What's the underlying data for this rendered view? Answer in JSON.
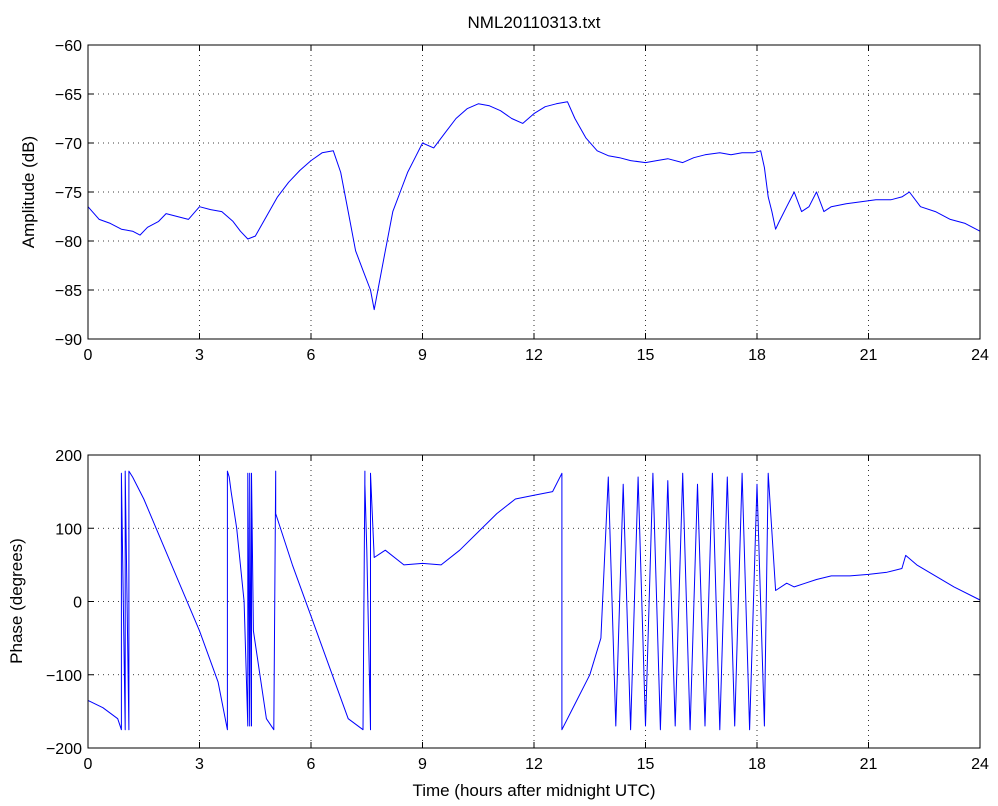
{
  "chart_data": [
    {
      "type": "line",
      "title": "NML20110313.txt",
      "xlabel": "",
      "ylabel": "Amplitude (dB)",
      "xlim": [
        0,
        24
      ],
      "ylim": [
        -90,
        -60
      ],
      "xticks": [
        "0",
        "3",
        "6",
        "9",
        "12",
        "15",
        "18",
        "21",
        "24"
      ],
      "yticks": [
        "−90",
        "−85",
        "−80",
        "−75",
        "−70",
        "−65",
        "−60"
      ],
      "grid": true,
      "line_color": "#0000ff",
      "series": [
        {
          "x": [
            0,
            0.3,
            0.6,
            0.9,
            1.2,
            1.4,
            1.6,
            1.9,
            2.1,
            2.4,
            2.7,
            3.0,
            3.3,
            3.6,
            3.9,
            4.1,
            4.3,
            4.5,
            4.8,
            5.1,
            5.4,
            5.7,
            6.0,
            6.3,
            6.6,
            6.8,
            7.0,
            7.2,
            7.4,
            7.6,
            7.7,
            7.8,
            8.0,
            8.2,
            8.4,
            8.6,
            8.8,
            9.0,
            9.3,
            9.6,
            9.9,
            10.2,
            10.5,
            10.8,
            11.1,
            11.4,
            11.7,
            12.0,
            12.3,
            12.6,
            12.9,
            13.1,
            13.4,
            13.7,
            14.0,
            14.3,
            14.6,
            15.0,
            15.3,
            15.6,
            16.0,
            16.3,
            16.6,
            17.0,
            17.3,
            17.6,
            17.9,
            18.1,
            18.2,
            18.3,
            18.4,
            18.5,
            18.6,
            18.8,
            19.0,
            19.2,
            19.4,
            19.6,
            19.8,
            20.0,
            20.4,
            20.8,
            21.2,
            21.6,
            21.9,
            22.1,
            22.4,
            22.8,
            23.2,
            23.6,
            24.0
          ],
          "values": [
            -76.5,
            -77.8,
            -78.2,
            -78.8,
            -79.0,
            -79.4,
            -78.6,
            -78.0,
            -77.2,
            -77.5,
            -77.8,
            -76.5,
            -76.8,
            -77.0,
            -78.0,
            -79.0,
            -79.8,
            -79.5,
            -77.5,
            -75.5,
            -74.0,
            -72.8,
            -71.8,
            -71.0,
            -70.8,
            -73.0,
            -77.0,
            -81.0,
            -83.0,
            -85.0,
            -87.0,
            -85.0,
            -81.0,
            -77.0,
            -75.0,
            -73.0,
            -71.5,
            -70.0,
            -70.5,
            -69.0,
            -67.5,
            -66.5,
            -66.0,
            -66.2,
            -66.7,
            -67.5,
            -68.0,
            -67.0,
            -66.3,
            -66.0,
            -65.8,
            -67.5,
            -69.5,
            -70.8,
            -71.3,
            -71.5,
            -71.8,
            -72.0,
            -71.8,
            -71.6,
            -72.0,
            -71.5,
            -71.2,
            -71.0,
            -71.2,
            -71.0,
            -71.0,
            -70.8,
            -72.5,
            -75.5,
            -77.0,
            -78.8,
            -78.0,
            -76.5,
            -75.0,
            -77.0,
            -76.5,
            -75.0,
            -77.0,
            -76.5,
            -76.2,
            -76.0,
            -75.8,
            -75.8,
            -75.5,
            -75.0,
            -76.5,
            -77.0,
            -77.8,
            -78.2,
            -79.0
          ]
        }
      ]
    },
    {
      "type": "line",
      "title": "",
      "xlabel": "Time (hours after midnight UTC)",
      "ylabel": "Phase (degrees)",
      "xlim": [
        0,
        24
      ],
      "ylim": [
        -200,
        200
      ],
      "xticks": [
        "0",
        "3",
        "6",
        "9",
        "12",
        "15",
        "18",
        "21",
        "24"
      ],
      "yticks": [
        "−200",
        "−100",
        "0",
        "100",
        "200"
      ],
      "grid": true,
      "line_color": "#0000ff",
      "series": [
        {
          "x": [
            0,
            0.4,
            0.8,
            0.9,
            0.9,
            1.0,
            1.0,
            1.1,
            1.1,
            1.2,
            1.5,
            2.0,
            2.5,
            3.0,
            3.5,
            3.75,
            3.75,
            3.8,
            3.85,
            4.0,
            4.2,
            4.3,
            4.3,
            4.35,
            4.35,
            4.4,
            4.4,
            4.45,
            4.8,
            5.0,
            5.05,
            5.05,
            5.5,
            6.0,
            6.5,
            7.0,
            7.4,
            7.45,
            7.45,
            7.5,
            7.6,
            7.6,
            7.7,
            8.0,
            8.5,
            9.0,
            9.5,
            10.0,
            10.5,
            11.0,
            11.5,
            12.0,
            12.5,
            12.75,
            12.75,
            13.0,
            13.5,
            13.8,
            14.0,
            14.2,
            14.4,
            14.6,
            14.8,
            15.0,
            15.2,
            15.4,
            15.6,
            15.8,
            16.0,
            16.2,
            16.4,
            16.6,
            16.8,
            17.0,
            17.2,
            17.4,
            17.6,
            17.8,
            18.0,
            18.2,
            18.3,
            18.5,
            18.8,
            19.0,
            19.3,
            19.6,
            20.0,
            20.5,
            21.0,
            21.5,
            21.9,
            22.0,
            22.3,
            22.8,
            23.3,
            24.0
          ],
          "values": [
            -135,
            -145,
            -160,
            -175,
            175,
            -175,
            178,
            -175,
            178,
            170,
            140,
            80,
            20,
            -40,
            -110,
            -175,
            178,
            170,
            150,
            100,
            0,
            -170,
            175,
            -170,
            175,
            -170,
            175,
            -40,
            -160,
            -175,
            178,
            120,
            50,
            -20,
            -90,
            -160,
            -175,
            178,
            160,
            70,
            -175,
            175,
            60,
            70,
            50,
            52,
            50,
            70,
            95,
            120,
            140,
            145,
            150,
            175,
            -175,
            -150,
            -100,
            -50,
            170,
            -170,
            160,
            -175,
            170,
            -170,
            175,
            -175,
            165,
            -170,
            175,
            -175,
            160,
            -170,
            175,
            -175,
            170,
            -170,
            175,
            -175,
            160,
            -170,
            175,
            15,
            25,
            20,
            25,
            30,
            35,
            35,
            37,
            40,
            45,
            63,
            50,
            35,
            20,
            2
          ]
        }
      ]
    }
  ]
}
